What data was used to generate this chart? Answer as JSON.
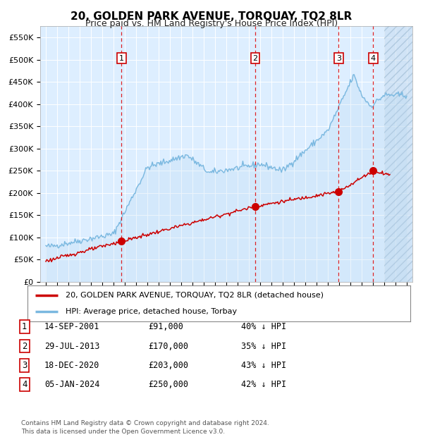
{
  "title": "20, GOLDEN PARK AVENUE, TORQUAY, TQ2 8LR",
  "subtitle": "Price paid vs. HM Land Registry's House Price Index (HPI)",
  "background_color": "#ffffff",
  "plot_bg_color": "#ddeeff",
  "grid_color": "#ffffff",
  "ylim": [
    0,
    575000
  ],
  "xlim_start": 1994.5,
  "xlim_end": 2027.5,
  "yticks": [
    0,
    50000,
    100000,
    150000,
    200000,
    250000,
    300000,
    350000,
    400000,
    450000,
    500000,
    550000
  ],
  "ytick_labels": [
    "£0",
    "£50K",
    "£100K",
    "£150K",
    "£200K",
    "£250K",
    "£300K",
    "£350K",
    "£400K",
    "£450K",
    "£500K",
    "£550K"
  ],
  "hpi_color": "#7ab8e0",
  "hpi_fill_color": "#b8d8f0",
  "price_color": "#cc0000",
  "marker_color": "#cc0000",
  "dashed_color": "#dd0000",
  "sale_dates": [
    2001.71,
    2013.57,
    2020.96,
    2024.02
  ],
  "sale_prices": [
    91000,
    170000,
    203000,
    250000
  ],
  "sale_labels": [
    "1",
    "2",
    "3",
    "4"
  ],
  "legend_entries": [
    "20, GOLDEN PARK AVENUE, TORQUAY, TQ2 8LR (detached house)",
    "HPI: Average price, detached house, Torbay"
  ],
  "table_rows": [
    [
      "1",
      "14-SEP-2001",
      "£91,000",
      "40% ↓ HPI"
    ],
    [
      "2",
      "29-JUL-2013",
      "£170,000",
      "35% ↓ HPI"
    ],
    [
      "3",
      "18-DEC-2020",
      "£203,000",
      "43% ↓ HPI"
    ],
    [
      "4",
      "05-JAN-2024",
      "£250,000",
      "42% ↓ HPI"
    ]
  ],
  "footnote": "Contains HM Land Registry data © Crown copyright and database right 2024.\nThis data is licensed under the Open Government Licence v3.0.",
  "hatch_start": 2025.0
}
